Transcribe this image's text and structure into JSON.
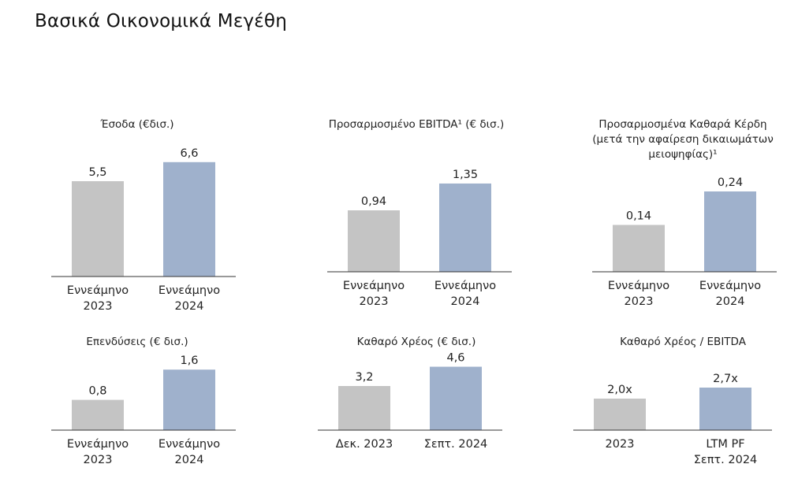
{
  "page": {
    "title": "Βασικά Οικονομικά Μεγέθη"
  },
  "colors": {
    "previous": "#c4c4c4",
    "current": "#9fb1cc",
    "axis": "#333333"
  },
  "chart_data": [
    {
      "type": "bar",
      "title": [
        "Έσοδα (€δισ.)"
      ],
      "categories": [
        [
          "Εννεάμηνο",
          "2023"
        ],
        [
          "Εννεάμηνο",
          "2024"
        ]
      ],
      "values": [
        5.5,
        6.6
      ],
      "value_labels": [
        "5,5",
        "6,6"
      ]
    },
    {
      "type": "bar",
      "title": [
        "Προσαρμοσμένο EBITDA¹ (€ δισ.)"
      ],
      "categories": [
        [
          "Εννεάμηνο",
          "2023"
        ],
        [
          "Εννεάμηνο",
          "2024"
        ]
      ],
      "values": [
        0.94,
        1.35
      ],
      "value_labels": [
        "0,94",
        "1,35"
      ]
    },
    {
      "type": "bar",
      "title": [
        "Προσαρμοσμένα Καθαρά Κέρδη",
        "(μετά την αφαίρεση δικαιωμάτων",
        "μειοψηφίας)¹"
      ],
      "categories": [
        [
          "Εννεάμηνο",
          "2023"
        ],
        [
          "Εννεάμηνο",
          "2024"
        ]
      ],
      "values": [
        0.14,
        0.24
      ],
      "value_labels": [
        "0,14",
        "0,24"
      ]
    },
    {
      "type": "bar",
      "title": [
        "Επενδύσεις (€ δισ.)"
      ],
      "categories": [
        [
          "Εννεάμηνο",
          "2023"
        ],
        [
          "Εννεάμηνο",
          "2024"
        ]
      ],
      "values": [
        0.8,
        1.6
      ],
      "value_labels": [
        "0,8",
        "1,6"
      ]
    },
    {
      "type": "bar",
      "title": [
        "Καθαρό Χρέος (€ δισ.)"
      ],
      "categories": [
        [
          "Δεκ. 2023"
        ],
        [
          "Σεπτ. 2024"
        ]
      ],
      "values": [
        3.2,
        4.6
      ],
      "value_labels": [
        "3,2",
        "4,6"
      ]
    },
    {
      "type": "bar",
      "title": [
        "Καθαρό Χρέος / EBITDA"
      ],
      "categories": [
        [
          "2023"
        ],
        [
          "LTM PF",
          "Σεπτ. 2024"
        ]
      ],
      "values": [
        2.0,
        2.7
      ],
      "value_labels": [
        "2,0x",
        "2,7x"
      ]
    }
  ]
}
